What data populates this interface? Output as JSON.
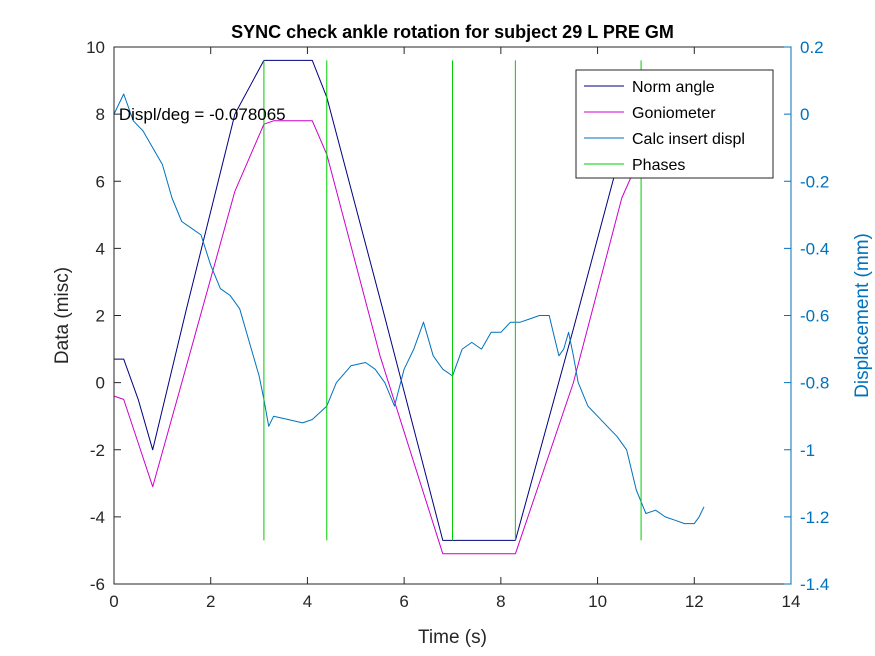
{
  "chart_data": {
    "type": "line",
    "title": "SYNC check ankle rotation for subject 29 L PRE GM",
    "xlabel": "Time (s)",
    "ylabel_left": "Data (misc)",
    "ylabel_right": "Displacement (mm)",
    "xlim": [
      0,
      14
    ],
    "ylim_left": [
      -6,
      10
    ],
    "ylim_right": [
      -1.4,
      0.2
    ],
    "xticks": [
      "0",
      "2",
      "4",
      "6",
      "8",
      "10",
      "12",
      "14"
    ],
    "yticks_left": [
      "-6",
      "-4",
      "-2",
      "0",
      "2",
      "4",
      "6",
      "8",
      "10"
    ],
    "yticks_right": [
      "-1.4",
      "-1.2",
      "-1",
      "-0.8",
      "-0.6",
      "-0.4",
      "-0.2",
      "0",
      "0.2"
    ],
    "annotation": "Displ/deg = -0.078065",
    "legend_position": "top-right",
    "colors": {
      "norm_angle": "#00007f",
      "goniometer": "#cc00cc",
      "calc_insert_displ": "#0072bd",
      "phases": "#00cc00"
    },
    "series": [
      {
        "name": "Norm angle",
        "axis": "left",
        "x": [
          0,
          0.2,
          0.5,
          0.8,
          1.5,
          2.5,
          3.1,
          3.3,
          4.1,
          4.4,
          5.5,
          6.8,
          7.0,
          8.1,
          8.3,
          9.5,
          10.5,
          10.9
        ],
        "y": [
          0.7,
          0.7,
          -0.5,
          -2.0,
          2.2,
          8.0,
          9.6,
          9.6,
          9.6,
          8.5,
          2.5,
          -4.7,
          -4.7,
          -4.7,
          -4.7,
          1.6,
          7.0,
          8.5
        ]
      },
      {
        "name": "Goniometer",
        "axis": "left",
        "x": [
          0,
          0.2,
          0.5,
          0.8,
          1.5,
          2.5,
          3.1,
          3.3,
          4.1,
          4.4,
          5.5,
          6.8,
          7.0,
          8.1,
          8.3,
          9.5,
          10.5,
          10.9
        ],
        "y": [
          -0.4,
          -0.5,
          -1.8,
          -3.1,
          0.5,
          5.7,
          7.7,
          7.8,
          7.8,
          6.8,
          0.8,
          -5.1,
          -5.1,
          -5.1,
          -5.1,
          0.0,
          5.5,
          6.8
        ]
      },
      {
        "name": "Calc insert displ",
        "axis": "right",
        "x": [
          0,
          0.2,
          0.4,
          0.6,
          0.8,
          1.0,
          1.2,
          1.4,
          1.6,
          1.8,
          2.0,
          2.2,
          2.4,
          2.6,
          2.8,
          3.0,
          3.1,
          3.2,
          3.3,
          3.6,
          3.9,
          4.1,
          4.4,
          4.6,
          4.9,
          5.2,
          5.4,
          5.6,
          5.8,
          6.0,
          6.2,
          6.4,
          6.6,
          6.8,
          7.0,
          7.2,
          7.4,
          7.6,
          7.8,
          8.0,
          8.2,
          8.4,
          8.6,
          8.8,
          9.0,
          9.1,
          9.2,
          9.3,
          9.4,
          9.5,
          9.6,
          9.8,
          10.0,
          10.2,
          10.4,
          10.6,
          10.8,
          11.0,
          11.2,
          11.4,
          11.6,
          11.8,
          12.0,
          12.1,
          12.2
        ],
        "y": [
          0.0,
          0.06,
          -0.02,
          -0.05,
          -0.1,
          -0.15,
          -0.25,
          -0.32,
          -0.34,
          -0.36,
          -0.45,
          -0.52,
          -0.54,
          -0.58,
          -0.68,
          -0.78,
          -0.85,
          -0.93,
          -0.9,
          -0.91,
          -0.92,
          -0.91,
          -0.87,
          -0.8,
          -0.75,
          -0.74,
          -0.76,
          -0.8,
          -0.87,
          -0.76,
          -0.7,
          -0.62,
          -0.72,
          -0.76,
          -0.78,
          -0.7,
          -0.68,
          -0.7,
          -0.65,
          -0.65,
          -0.62,
          -0.62,
          -0.61,
          -0.6,
          -0.6,
          -0.66,
          -0.72,
          -0.7,
          -0.65,
          -0.72,
          -0.8,
          -0.87,
          -0.9,
          -0.93,
          -0.96,
          -1.0,
          -1.12,
          -1.19,
          -1.18,
          -1.2,
          -1.21,
          -1.22,
          -1.22,
          -1.2,
          -1.17
        ]
      },
      {
        "name": "Phases",
        "axis": "left",
        "type": "vline",
        "x": [
          3.1,
          4.4,
          7.0,
          8.3,
          10.9
        ],
        "y_range": [
          -4.7,
          9.6
        ]
      }
    ]
  }
}
